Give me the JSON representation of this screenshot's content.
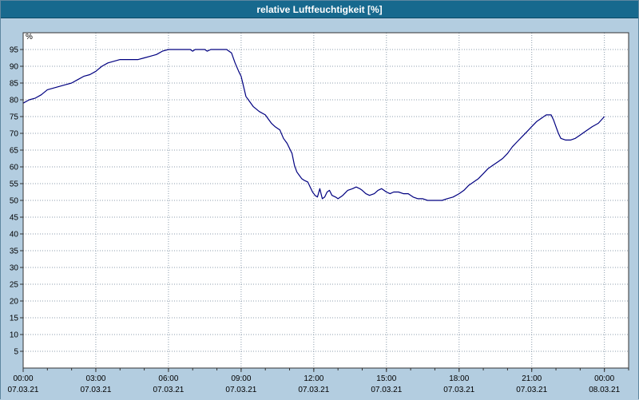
{
  "window": {
    "title": "relative Luftfeuchtigkeit [%]"
  },
  "chart_data": {
    "type": "line",
    "title": "relative Luftfeuchtigkeit [%]",
    "ylabel": "%",
    "xlabel": "",
    "ylim": [
      0,
      100
    ],
    "xlim_hours": [
      0,
      25
    ],
    "grid": true,
    "legend_position": "none",
    "yticks": [
      5,
      10,
      15,
      20,
      25,
      30,
      35,
      40,
      45,
      50,
      55,
      60,
      65,
      70,
      75,
      80,
      85,
      90,
      95
    ],
    "xticks": [
      {
        "hour": 0,
        "time": "00:00",
        "date": "07.03.21"
      },
      {
        "hour": 3,
        "time": "03:00",
        "date": "07.03.21"
      },
      {
        "hour": 6,
        "time": "06:00",
        "date": "07.03.21"
      },
      {
        "hour": 9,
        "time": "09:00",
        "date": "07.03.21"
      },
      {
        "hour": 12,
        "time": "12:00",
        "date": "07.03.21"
      },
      {
        "hour": 15,
        "time": "15:00",
        "date": "07.03.21"
      },
      {
        "hour": 18,
        "time": "18:00",
        "date": "07.03.21"
      },
      {
        "hour": 21,
        "time": "21:00",
        "date": "07.03.21"
      },
      {
        "hour": 24,
        "time": "00:00",
        "date": "08.03.21"
      }
    ],
    "series": [
      {
        "name": "relative Luftfeuchtigkeit",
        "color": "#000080",
        "points": [
          [
            0,
            79
          ],
          [
            0.25,
            80
          ],
          [
            0.5,
            80.5
          ],
          [
            0.75,
            81.5
          ],
          [
            1,
            83
          ],
          [
            1.25,
            83.5
          ],
          [
            1.5,
            84
          ],
          [
            1.75,
            84.5
          ],
          [
            2,
            85
          ],
          [
            2.25,
            86
          ],
          [
            2.5,
            87
          ],
          [
            2.75,
            87.5
          ],
          [
            3,
            88.5
          ],
          [
            3.25,
            90
          ],
          [
            3.5,
            91
          ],
          [
            3.75,
            91.5
          ],
          [
            4,
            92
          ],
          [
            4.25,
            92
          ],
          [
            4.5,
            92
          ],
          [
            4.75,
            92
          ],
          [
            5,
            92.5
          ],
          [
            5.25,
            93
          ],
          [
            5.5,
            93.5
          ],
          [
            5.75,
            94.5
          ],
          [
            6,
            95
          ],
          [
            6.5,
            95
          ],
          [
            6.9,
            95
          ],
          [
            7,
            94.5
          ],
          [
            7.1,
            95
          ],
          [
            7.5,
            95
          ],
          [
            7.6,
            94.5
          ],
          [
            7.75,
            95
          ],
          [
            8,
            95
          ],
          [
            8.4,
            95
          ],
          [
            8.5,
            94.5
          ],
          [
            8.6,
            94
          ],
          [
            8.75,
            91
          ],
          [
            8.9,
            88.5
          ],
          [
            9,
            87
          ],
          [
            9.1,
            84
          ],
          [
            9.2,
            81
          ],
          [
            9.35,
            79.5
          ],
          [
            9.5,
            78
          ],
          [
            9.75,
            76.5
          ],
          [
            10,
            75.5
          ],
          [
            10.1,
            74.5
          ],
          [
            10.25,
            73
          ],
          [
            10.4,
            72
          ],
          [
            10.5,
            71.5
          ],
          [
            10.6,
            71
          ],
          [
            10.75,
            68.5
          ],
          [
            10.9,
            67
          ],
          [
            11,
            65.5
          ],
          [
            11.1,
            64
          ],
          [
            11.2,
            60.5
          ],
          [
            11.3,
            58.5
          ],
          [
            11.4,
            57.5
          ],
          [
            11.5,
            56.5
          ],
          [
            11.6,
            56
          ],
          [
            11.75,
            55.5
          ],
          [
            11.85,
            54
          ],
          [
            11.95,
            52.5
          ],
          [
            12.05,
            51.5
          ],
          [
            12.15,
            51
          ],
          [
            12.25,
            53.5
          ],
          [
            12.35,
            50.5
          ],
          [
            12.45,
            51
          ],
          [
            12.55,
            52.5
          ],
          [
            12.65,
            53
          ],
          [
            12.75,
            51.5
          ],
          [
            12.9,
            51
          ],
          [
            13,
            50.5
          ],
          [
            13.2,
            51.5
          ],
          [
            13.4,
            53
          ],
          [
            13.6,
            53.5
          ],
          [
            13.75,
            54
          ],
          [
            13.9,
            53.5
          ],
          [
            14,
            53
          ],
          [
            14.15,
            52
          ],
          [
            14.3,
            51.5
          ],
          [
            14.5,
            52
          ],
          [
            14.65,
            53
          ],
          [
            14.8,
            53.5
          ],
          [
            15,
            52.5
          ],
          [
            15.15,
            52
          ],
          [
            15.3,
            52.5
          ],
          [
            15.5,
            52.5
          ],
          [
            15.7,
            52
          ],
          [
            15.9,
            52
          ],
          [
            16.1,
            51
          ],
          [
            16.3,
            50.5
          ],
          [
            16.5,
            50.5
          ],
          [
            16.7,
            50
          ],
          [
            17,
            50
          ],
          [
            17.3,
            50
          ],
          [
            17.5,
            50.5
          ],
          [
            17.75,
            51
          ],
          [
            18,
            52
          ],
          [
            18.2,
            53
          ],
          [
            18.4,
            54.5
          ],
          [
            18.6,
            55.5
          ],
          [
            18.8,
            56.5
          ],
          [
            19,
            58
          ],
          [
            19.2,
            59.5
          ],
          [
            19.4,
            60.5
          ],
          [
            19.6,
            61.5
          ],
          [
            19.8,
            62.5
          ],
          [
            20,
            64
          ],
          [
            20.2,
            66
          ],
          [
            20.4,
            67.5
          ],
          [
            20.6,
            69
          ],
          [
            20.8,
            70.5
          ],
          [
            21,
            72
          ],
          [
            21.2,
            73.5
          ],
          [
            21.4,
            74.5
          ],
          [
            21.6,
            75.5
          ],
          [
            21.8,
            75.5
          ],
          [
            21.9,
            74
          ],
          [
            22,
            72
          ],
          [
            22.1,
            70
          ],
          [
            22.2,
            68.5
          ],
          [
            22.4,
            68
          ],
          [
            22.6,
            68
          ],
          [
            22.8,
            68.5
          ],
          [
            23,
            69.5
          ],
          [
            23.2,
            70.5
          ],
          [
            23.5,
            72
          ],
          [
            23.75,
            73
          ],
          [
            24,
            75
          ]
        ]
      }
    ],
    "colors": {
      "titlebar_bg": "#17698e",
      "titlebar_text": "#ffffff",
      "background": "#b3cde0",
      "plot_bg": "#ffffff",
      "grid": "#8c9cac",
      "axis": "#333333",
      "tick_text": "#000000",
      "line": "#000080"
    }
  }
}
